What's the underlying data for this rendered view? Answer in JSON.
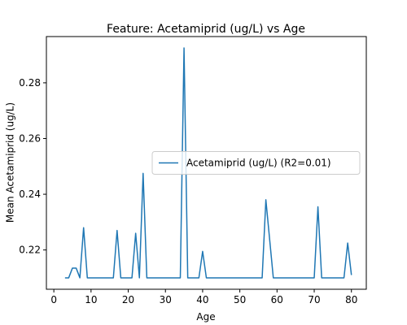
{
  "chart_data": {
    "type": "line",
    "title": "Feature: Acetamiprid (ug/L) vs Age",
    "xlabel": "Age",
    "ylabel": "Mean Acetamiprid (ug/L)",
    "x": [
      3,
      4,
      5,
      6,
      7,
      8,
      9,
      10,
      11,
      12,
      13,
      14,
      15,
      16,
      17,
      18,
      19,
      20,
      21,
      22,
      23,
      24,
      25,
      26,
      27,
      28,
      29,
      30,
      31,
      32,
      33,
      34,
      35,
      36,
      37,
      38,
      39,
      40,
      41,
      42,
      43,
      44,
      45,
      46,
      47,
      48,
      49,
      50,
      51,
      52,
      53,
      54,
      55,
      56,
      57,
      59,
      60,
      61,
      62,
      63,
      64,
      65,
      66,
      67,
      68,
      69,
      70,
      71,
      72,
      73,
      74,
      75,
      76,
      77,
      78,
      79,
      80
    ],
    "series": [
      {
        "name": "Acetamiprid (ug/L) (R2=0.01)",
        "color": "#1f77b4",
        "values": [
          0.21,
          0.21,
          0.2135,
          0.2135,
          0.21,
          0.228,
          0.21,
          0.21,
          0.21,
          0.21,
          0.21,
          0.21,
          0.21,
          0.21,
          0.227,
          0.21,
          0.21,
          0.21,
          0.21,
          0.226,
          0.21,
          0.2475,
          0.21,
          0.21,
          0.21,
          0.21,
          0.21,
          0.21,
          0.21,
          0.21,
          0.21,
          0.21,
          0.2925,
          0.21,
          0.21,
          0.21,
          0.21,
          0.2195,
          0.21,
          0.21,
          0.21,
          0.21,
          0.21,
          0.21,
          0.21,
          0.21,
          0.21,
          0.21,
          0.21,
          0.21,
          0.21,
          0.21,
          0.21,
          0.21,
          0.238,
          0.21,
          0.21,
          0.21,
          0.21,
          0.21,
          0.21,
          0.21,
          0.21,
          0.21,
          0.21,
          0.21,
          0.21,
          0.2355,
          0.21,
          0.21,
          0.21,
          0.21,
          0.21,
          0.21,
          0.21,
          0.2225,
          0.211
        ]
      }
    ],
    "xlim": [
      -2,
      84
    ],
    "xticks": [
      0,
      10,
      20,
      30,
      40,
      50,
      60,
      70,
      80
    ],
    "ylim": [
      0.2059,
      0.2966
    ],
    "yticks": [
      0.22,
      0.24,
      0.26,
      0.28
    ],
    "grid": false,
    "legend": "center right"
  }
}
